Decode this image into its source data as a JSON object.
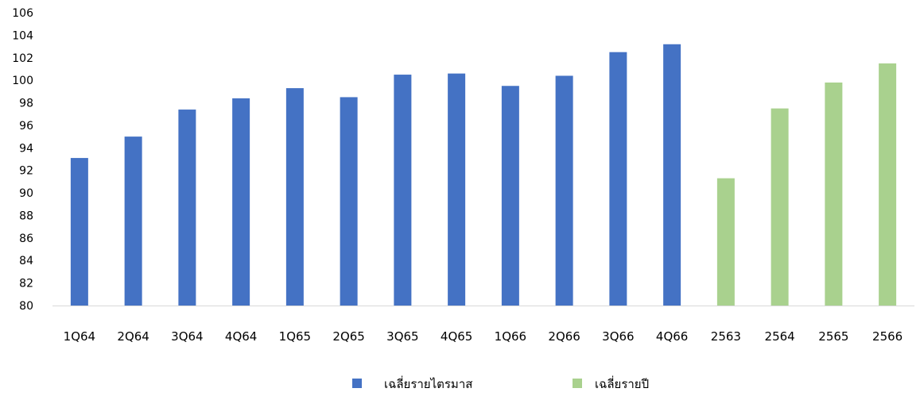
{
  "chart_data": {
    "type": "bar",
    "title": "",
    "xlabel": "",
    "ylabel": "",
    "ylim": [
      80,
      106
    ],
    "yticks": [
      "80",
      "82",
      "84",
      "86",
      "88",
      "90",
      "92",
      "94",
      "96",
      "98",
      "100",
      "102",
      "104",
      "106"
    ],
    "grid": false,
    "legend_position": "bottom",
    "categories": [
      "1Q64",
      "2Q64",
      "3Q64",
      "4Q64",
      "1Q65",
      "2Q65",
      "3Q65",
      "4Q65",
      "1Q66",
      "2Q66",
      "3Q66",
      "4Q66",
      "2563",
      "2564",
      "2565",
      "2566"
    ],
    "series": [
      {
        "name": "เฉลี่ยรายไตรมาส",
        "color": "#4472C4",
        "values": [
          93.1,
          95.0,
          97.4,
          98.4,
          99.3,
          98.5,
          100.5,
          100.6,
          99.5,
          100.4,
          102.5,
          103.2,
          null,
          null,
          null,
          null
        ]
      },
      {
        "name": "เฉลี่ยรายปี",
        "color": "#A9D18E",
        "values": [
          null,
          null,
          null,
          null,
          null,
          null,
          null,
          null,
          null,
          null,
          null,
          null,
          91.3,
          97.5,
          99.8,
          101.5
        ]
      }
    ]
  }
}
